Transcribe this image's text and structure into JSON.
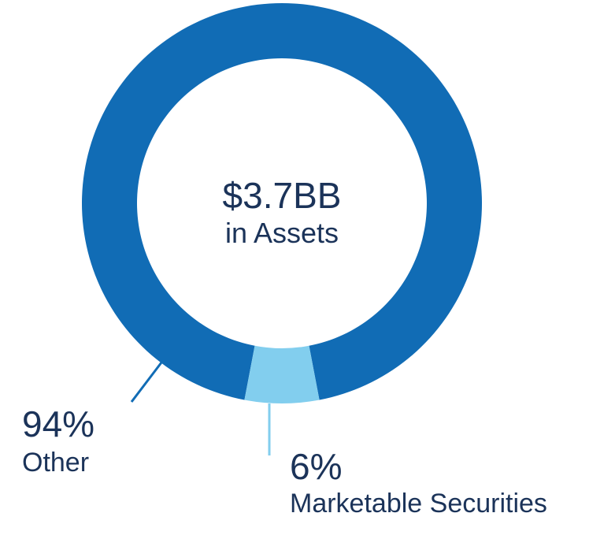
{
  "chart_data": {
    "type": "pie",
    "variant": "donut",
    "center_text": {
      "value": "$3.7BB",
      "caption": "in Assets"
    },
    "slices": [
      {
        "label": "Other",
        "percent_text": "94%",
        "value": 94,
        "color": "#116cb5"
      },
      {
        "label": "Marketable Securities",
        "percent_text": "6%",
        "value": 6,
        "color": "#82ceee"
      }
    ],
    "legend": "none",
    "label_placement": "callouts below ring"
  }
}
